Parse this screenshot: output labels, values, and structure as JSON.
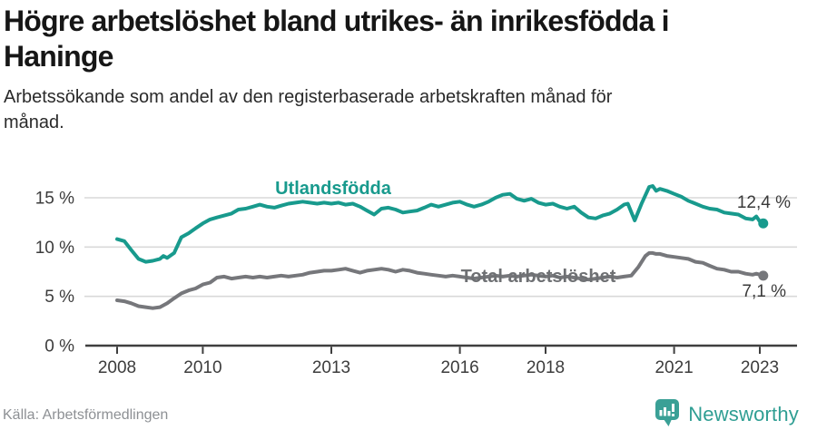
{
  "header": {
    "title": "Högre arbetslöshet bland utrikes- än inrikesfödda i\nHaninge",
    "subtitle": "Arbetssökande som andel av den registerbaserade arbetskraften månad för\nmånad."
  },
  "footer": {
    "source": "Källa: Arbetsförmedlingen",
    "brand": "Newsworthy"
  },
  "colors": {
    "accent_teal": "#189a8d",
    "gray_line": "#76777b",
    "gray_label": "#6e7073",
    "axis_text": "#3c3c3c",
    "value_label_text": "#3a3a3a",
    "grid": "#d9d9d9",
    "axis_line": "#3f3f3f",
    "source_text": "#8d9094",
    "logo_teal": "#3aa096"
  },
  "chart_data": {
    "type": "line",
    "title": "Högre arbetslöshet bland utrikes- än inrikesfödda i Haninge",
    "subtitle": "Arbetssökande som andel av den registerbaserade arbetskraften månad för månad.",
    "xlabel": "",
    "ylabel": "",
    "xlim": [
      2007.25,
      2023.9
    ],
    "ylim": [
      0,
      17.6
    ],
    "grid": "horizontal",
    "legend_position": "inline-labels",
    "y_ticks": [
      {
        "v": 0,
        "label": "0 %"
      },
      {
        "v": 5,
        "label": "5 %"
      },
      {
        "v": 10,
        "label": "10 %"
      },
      {
        "v": 15,
        "label": "15 %"
      }
    ],
    "x_ticks": [
      {
        "v": 2008,
        "label": "2008"
      },
      {
        "v": 2010,
        "label": "2010"
      },
      {
        "v": 2013,
        "label": "2013"
      },
      {
        "v": 2016,
        "label": "2016"
      },
      {
        "v": 2018,
        "label": "2018"
      },
      {
        "v": 2021,
        "label": "2021"
      },
      {
        "v": 2023,
        "label": "2023"
      }
    ],
    "series": [
      {
        "name": "Utlandsfödda",
        "color": "#189a8d",
        "end_label": "12,4 %",
        "last_value": 12.4,
        "points": [
          [
            2008.0,
            10.8
          ],
          [
            2008.17,
            10.6
          ],
          [
            2008.33,
            9.7
          ],
          [
            2008.5,
            8.8
          ],
          [
            2008.67,
            8.5
          ],
          [
            2008.83,
            8.6
          ],
          [
            2009.0,
            8.8
          ],
          [
            2009.08,
            9.1
          ],
          [
            2009.17,
            8.9
          ],
          [
            2009.33,
            9.4
          ],
          [
            2009.5,
            11.0
          ],
          [
            2009.67,
            11.4
          ],
          [
            2009.83,
            11.9
          ],
          [
            2010.0,
            12.4
          ],
          [
            2010.17,
            12.8
          ],
          [
            2010.33,
            13.0
          ],
          [
            2010.5,
            13.2
          ],
          [
            2010.67,
            13.4
          ],
          [
            2010.83,
            13.8
          ],
          [
            2011.0,
            13.9
          ],
          [
            2011.17,
            14.1
          ],
          [
            2011.33,
            14.3
          ],
          [
            2011.5,
            14.1
          ],
          [
            2011.67,
            14.0
          ],
          [
            2011.83,
            14.2
          ],
          [
            2012.0,
            14.4
          ],
          [
            2012.17,
            14.5
          ],
          [
            2012.33,
            14.6
          ],
          [
            2012.5,
            14.5
          ],
          [
            2012.67,
            14.4
          ],
          [
            2012.83,
            14.5
          ],
          [
            2013.0,
            14.4
          ],
          [
            2013.17,
            14.5
          ],
          [
            2013.33,
            14.3
          ],
          [
            2013.5,
            14.4
          ],
          [
            2013.67,
            14.1
          ],
          [
            2013.83,
            13.7
          ],
          [
            2014.0,
            13.3
          ],
          [
            2014.17,
            13.9
          ],
          [
            2014.33,
            14.0
          ],
          [
            2014.5,
            13.8
          ],
          [
            2014.67,
            13.5
          ],
          [
            2014.83,
            13.6
          ],
          [
            2015.0,
            13.7
          ],
          [
            2015.17,
            14.0
          ],
          [
            2015.33,
            14.3
          ],
          [
            2015.5,
            14.1
          ],
          [
            2015.67,
            14.3
          ],
          [
            2015.83,
            14.5
          ],
          [
            2016.0,
            14.6
          ],
          [
            2016.17,
            14.3
          ],
          [
            2016.33,
            14.1
          ],
          [
            2016.5,
            14.3
          ],
          [
            2016.67,
            14.6
          ],
          [
            2016.83,
            15.0
          ],
          [
            2017.0,
            15.3
          ],
          [
            2017.17,
            15.4
          ],
          [
            2017.33,
            14.9
          ],
          [
            2017.5,
            14.7
          ],
          [
            2017.67,
            14.9
          ],
          [
            2017.83,
            14.5
          ],
          [
            2018.0,
            14.3
          ],
          [
            2018.17,
            14.4
          ],
          [
            2018.33,
            14.1
          ],
          [
            2018.5,
            13.9
          ],
          [
            2018.67,
            14.1
          ],
          [
            2018.83,
            13.5
          ],
          [
            2019.0,
            13.0
          ],
          [
            2019.17,
            12.9
          ],
          [
            2019.33,
            13.2
          ],
          [
            2019.5,
            13.4
          ],
          [
            2019.67,
            13.8
          ],
          [
            2019.83,
            14.3
          ],
          [
            2019.92,
            14.4
          ],
          [
            2020.08,
            12.7
          ],
          [
            2020.25,
            14.5
          ],
          [
            2020.42,
            16.1
          ],
          [
            2020.5,
            16.2
          ],
          [
            2020.58,
            15.7
          ],
          [
            2020.67,
            15.9
          ],
          [
            2020.83,
            15.7
          ],
          [
            2021.0,
            15.4
          ],
          [
            2021.17,
            15.1
          ],
          [
            2021.33,
            14.7
          ],
          [
            2021.5,
            14.4
          ],
          [
            2021.67,
            14.1
          ],
          [
            2021.83,
            13.9
          ],
          [
            2022.0,
            13.8
          ],
          [
            2022.17,
            13.5
          ],
          [
            2022.33,
            13.4
          ],
          [
            2022.5,
            13.3
          ],
          [
            2022.67,
            12.9
          ],
          [
            2022.83,
            12.8
          ],
          [
            2022.92,
            13.1
          ],
          [
            2023.0,
            12.6
          ],
          [
            2023.08,
            12.4
          ]
        ]
      },
      {
        "name": "Total arbetslöshet",
        "color": "#76777b",
        "end_label": "7,1 %",
        "last_value": 7.1,
        "points": [
          [
            2008.0,
            4.6
          ],
          [
            2008.17,
            4.5
          ],
          [
            2008.33,
            4.3
          ],
          [
            2008.5,
            4.0
          ],
          [
            2008.67,
            3.9
          ],
          [
            2008.83,
            3.8
          ],
          [
            2009.0,
            3.9
          ],
          [
            2009.17,
            4.3
          ],
          [
            2009.33,
            4.8
          ],
          [
            2009.5,
            5.3
          ],
          [
            2009.67,
            5.6
          ],
          [
            2009.83,
            5.8
          ],
          [
            2010.0,
            6.2
          ],
          [
            2010.17,
            6.4
          ],
          [
            2010.33,
            6.9
          ],
          [
            2010.5,
            7.0
          ],
          [
            2010.67,
            6.8
          ],
          [
            2010.83,
            6.9
          ],
          [
            2011.0,
            7.0
          ],
          [
            2011.17,
            6.9
          ],
          [
            2011.33,
            7.0
          ],
          [
            2011.5,
            6.9
          ],
          [
            2011.67,
            7.0
          ],
          [
            2011.83,
            7.1
          ],
          [
            2012.0,
            7.0
          ],
          [
            2012.17,
            7.1
          ],
          [
            2012.33,
            7.2
          ],
          [
            2012.5,
            7.4
          ],
          [
            2012.67,
            7.5
          ],
          [
            2012.83,
            7.6
          ],
          [
            2013.0,
            7.6
          ],
          [
            2013.17,
            7.7
          ],
          [
            2013.33,
            7.8
          ],
          [
            2013.5,
            7.6
          ],
          [
            2013.67,
            7.4
          ],
          [
            2013.83,
            7.6
          ],
          [
            2014.0,
            7.7
          ],
          [
            2014.17,
            7.8
          ],
          [
            2014.33,
            7.7
          ],
          [
            2014.5,
            7.5
          ],
          [
            2014.67,
            7.7
          ],
          [
            2014.83,
            7.6
          ],
          [
            2015.0,
            7.4
          ],
          [
            2015.17,
            7.3
          ],
          [
            2015.33,
            7.2
          ],
          [
            2015.5,
            7.1
          ],
          [
            2015.67,
            7.0
          ],
          [
            2015.83,
            7.1
          ],
          [
            2016.0,
            7.0
          ],
          [
            2016.17,
            6.9
          ],
          [
            2016.33,
            6.8
          ],
          [
            2016.5,
            6.9
          ],
          [
            2016.67,
            7.0
          ],
          [
            2016.83,
            7.1
          ],
          [
            2017.0,
            7.0
          ],
          [
            2017.17,
            7.1
          ],
          [
            2017.33,
            7.0
          ],
          [
            2017.5,
            7.1
          ],
          [
            2017.67,
            7.2
          ],
          [
            2017.83,
            7.1
          ],
          [
            2018.0,
            7.0
          ],
          [
            2018.17,
            7.1
          ],
          [
            2018.33,
            6.9
          ],
          [
            2018.5,
            7.0
          ],
          [
            2018.67,
            6.9
          ],
          [
            2018.83,
            6.8
          ],
          [
            2019.0,
            6.7
          ],
          [
            2019.17,
            6.8
          ],
          [
            2019.33,
            6.9
          ],
          [
            2019.5,
            7.0
          ],
          [
            2019.67,
            6.9
          ],
          [
            2019.83,
            7.0
          ],
          [
            2020.0,
            7.1
          ],
          [
            2020.17,
            8.0
          ],
          [
            2020.33,
            9.1
          ],
          [
            2020.42,
            9.4
          ],
          [
            2020.5,
            9.4
          ],
          [
            2020.58,
            9.3
          ],
          [
            2020.67,
            9.3
          ],
          [
            2020.83,
            9.1
          ],
          [
            2021.0,
            9.0
          ],
          [
            2021.17,
            8.9
          ],
          [
            2021.33,
            8.8
          ],
          [
            2021.5,
            8.5
          ],
          [
            2021.67,
            8.4
          ],
          [
            2021.83,
            8.1
          ],
          [
            2022.0,
            7.8
          ],
          [
            2022.17,
            7.7
          ],
          [
            2022.33,
            7.5
          ],
          [
            2022.5,
            7.5
          ],
          [
            2022.67,
            7.3
          ],
          [
            2022.83,
            7.2
          ],
          [
            2022.92,
            7.3
          ],
          [
            2023.0,
            7.2
          ],
          [
            2023.08,
            7.1
          ]
        ]
      }
    ]
  }
}
